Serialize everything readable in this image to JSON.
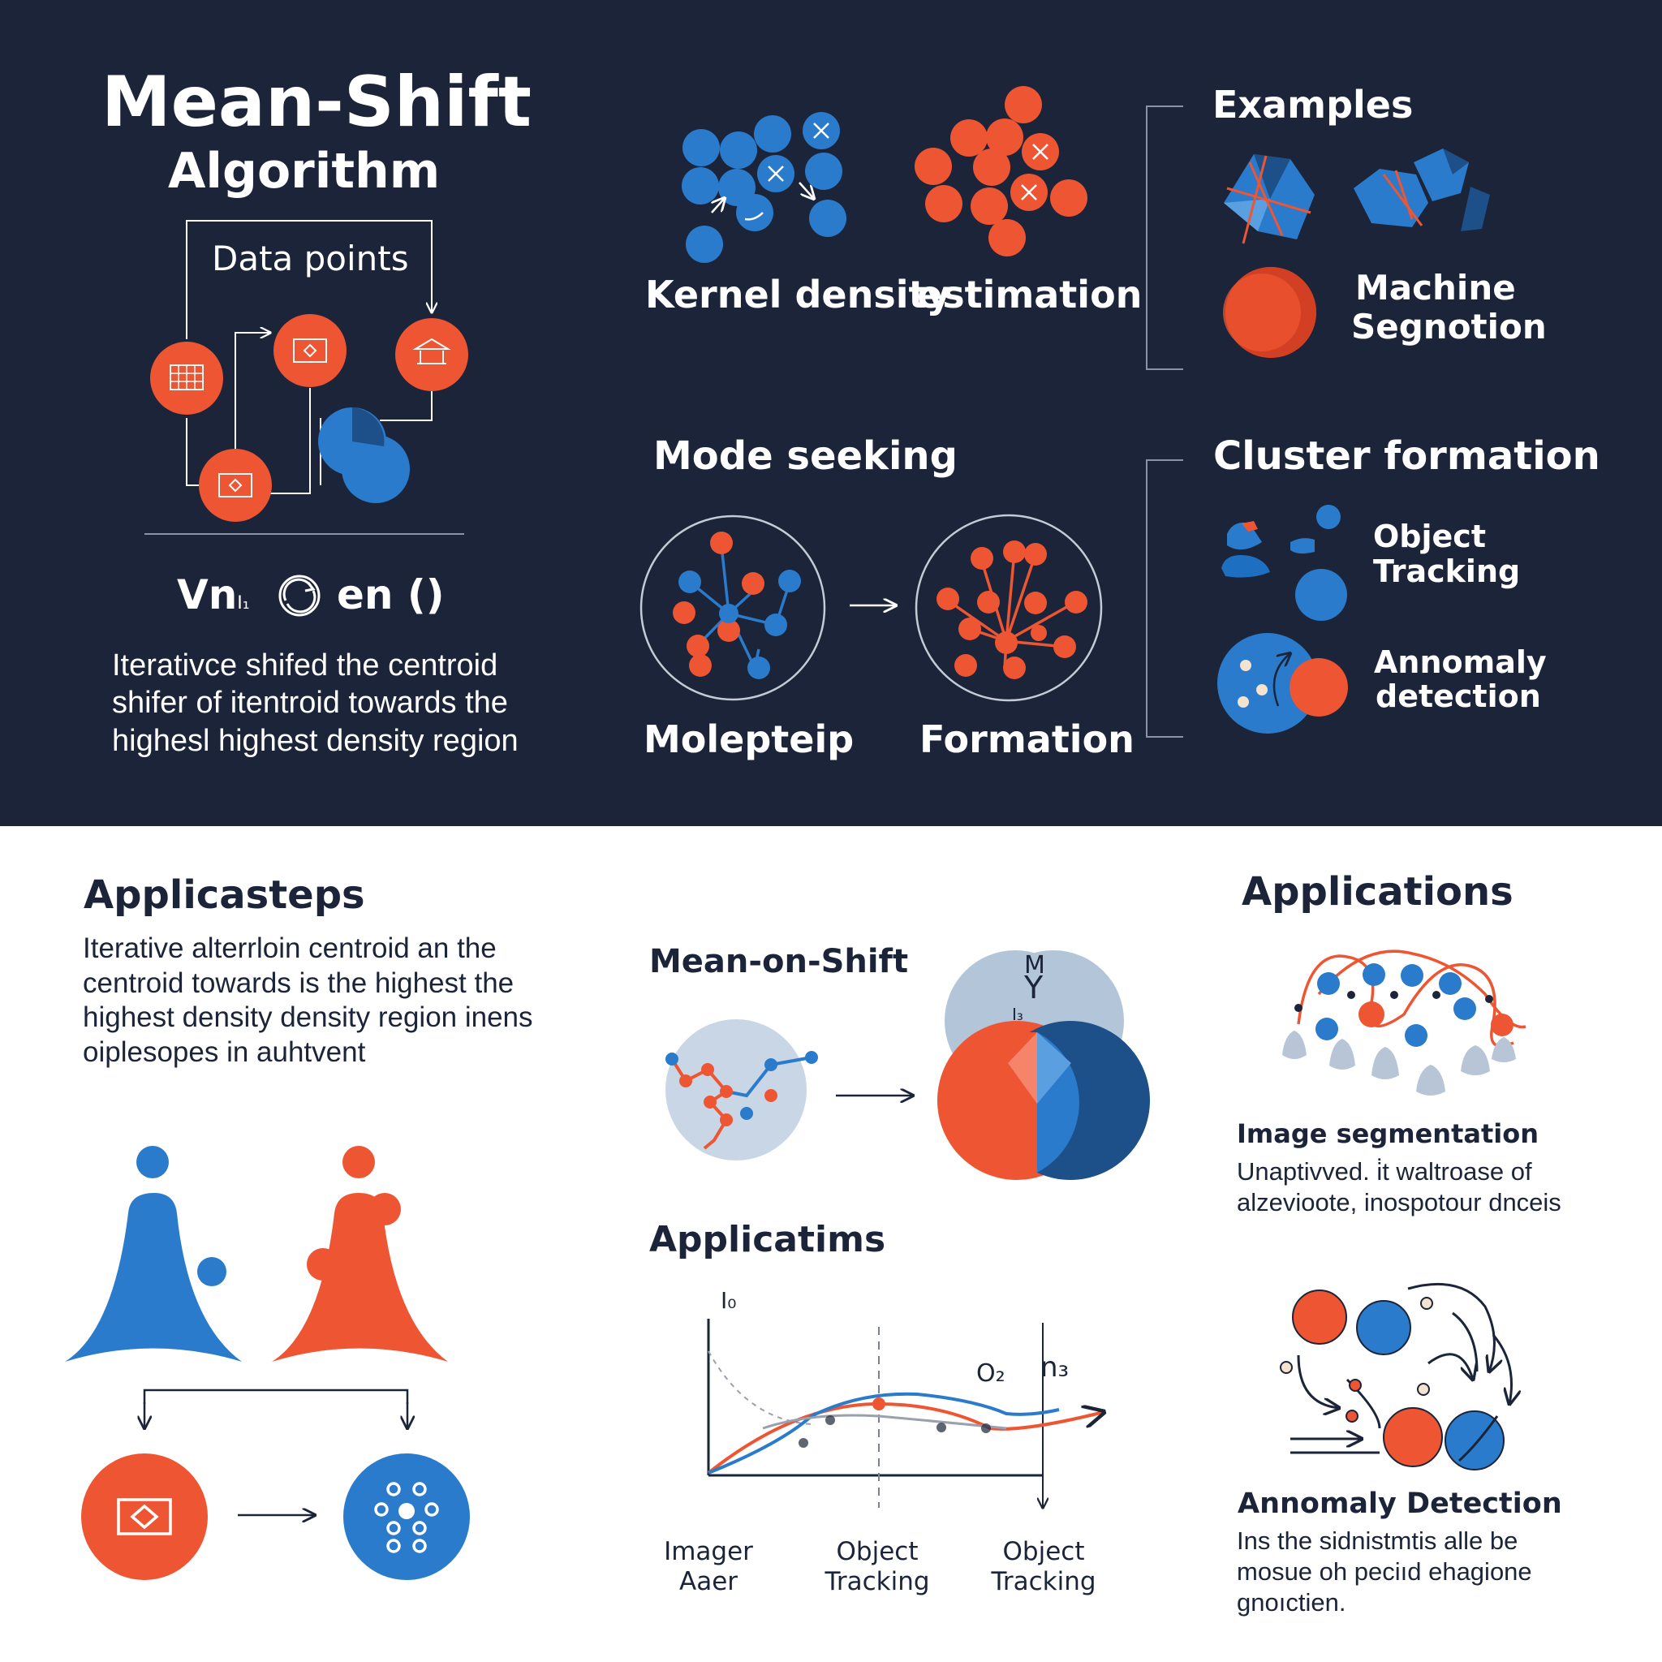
{
  "colors": {
    "navy": "#1b2438",
    "orange": "#ee5532",
    "blue": "#2a7bcc",
    "light_blue": "#c6d2e0",
    "white": "#ffffff"
  },
  "title": {
    "line1": "Mean-Shift",
    "line2": "Algorithm"
  },
  "intro": {
    "data_points_label": "Data points",
    "formula": "Vn",
    "formula_sub": "I₁",
    "formula_rest": "en ()",
    "description": "Iterativce shifed the centroid shifer of itentroid towards the highesl highest density region"
  },
  "kde": {
    "label_left": "Kernel density",
    "label_right": "estimation"
  },
  "examples": {
    "heading": "Examples",
    "machine_line1": "Machine",
    "machine_line2": "Segnotion"
  },
  "mode": {
    "heading": "Mode seeking",
    "label_left": "Molepteip",
    "label_right": "Formation"
  },
  "cluster": {
    "heading": "Cluster formation",
    "item1_line1": "Object",
    "item1_line2": "Tracking",
    "item2_line1": "Annomaly",
    "item2_line2": "detection"
  },
  "applicasteps": {
    "heading": "Applicasteps",
    "body": "Iterative alterrloin centroid an the centroid towards is the highest the highest density density region inens oiplesopes in auhtvent"
  },
  "meanshift": {
    "heading": "Mean-on-Shift",
    "glyph_m": "M",
    "glyph_y": "Y",
    "glyph_i": "I₃"
  },
  "applicatims": {
    "heading": "Applicatims",
    "axis_label": "I₀",
    "curve_label_o": "O₂",
    "curve_label_n": "n₃",
    "x_labels": [
      {
        "line1": "Imager",
        "line2": "Aaer"
      },
      {
        "line1": "Object",
        "line2": "Tracking"
      },
      {
        "line1": "Object",
        "line2": "Tracking"
      }
    ]
  },
  "applications": {
    "heading": "Applications",
    "image_seg_title": "Image segmentation",
    "image_seg_body": "Unaptivved. i̇t waltroase of alzevioote, inospotour dnceis",
    "anomaly_title": "Annomaly Detection",
    "anomaly_body": "Ins the sidnistmtis alle be mosue oh peciıd ehagione gnoıctien."
  }
}
